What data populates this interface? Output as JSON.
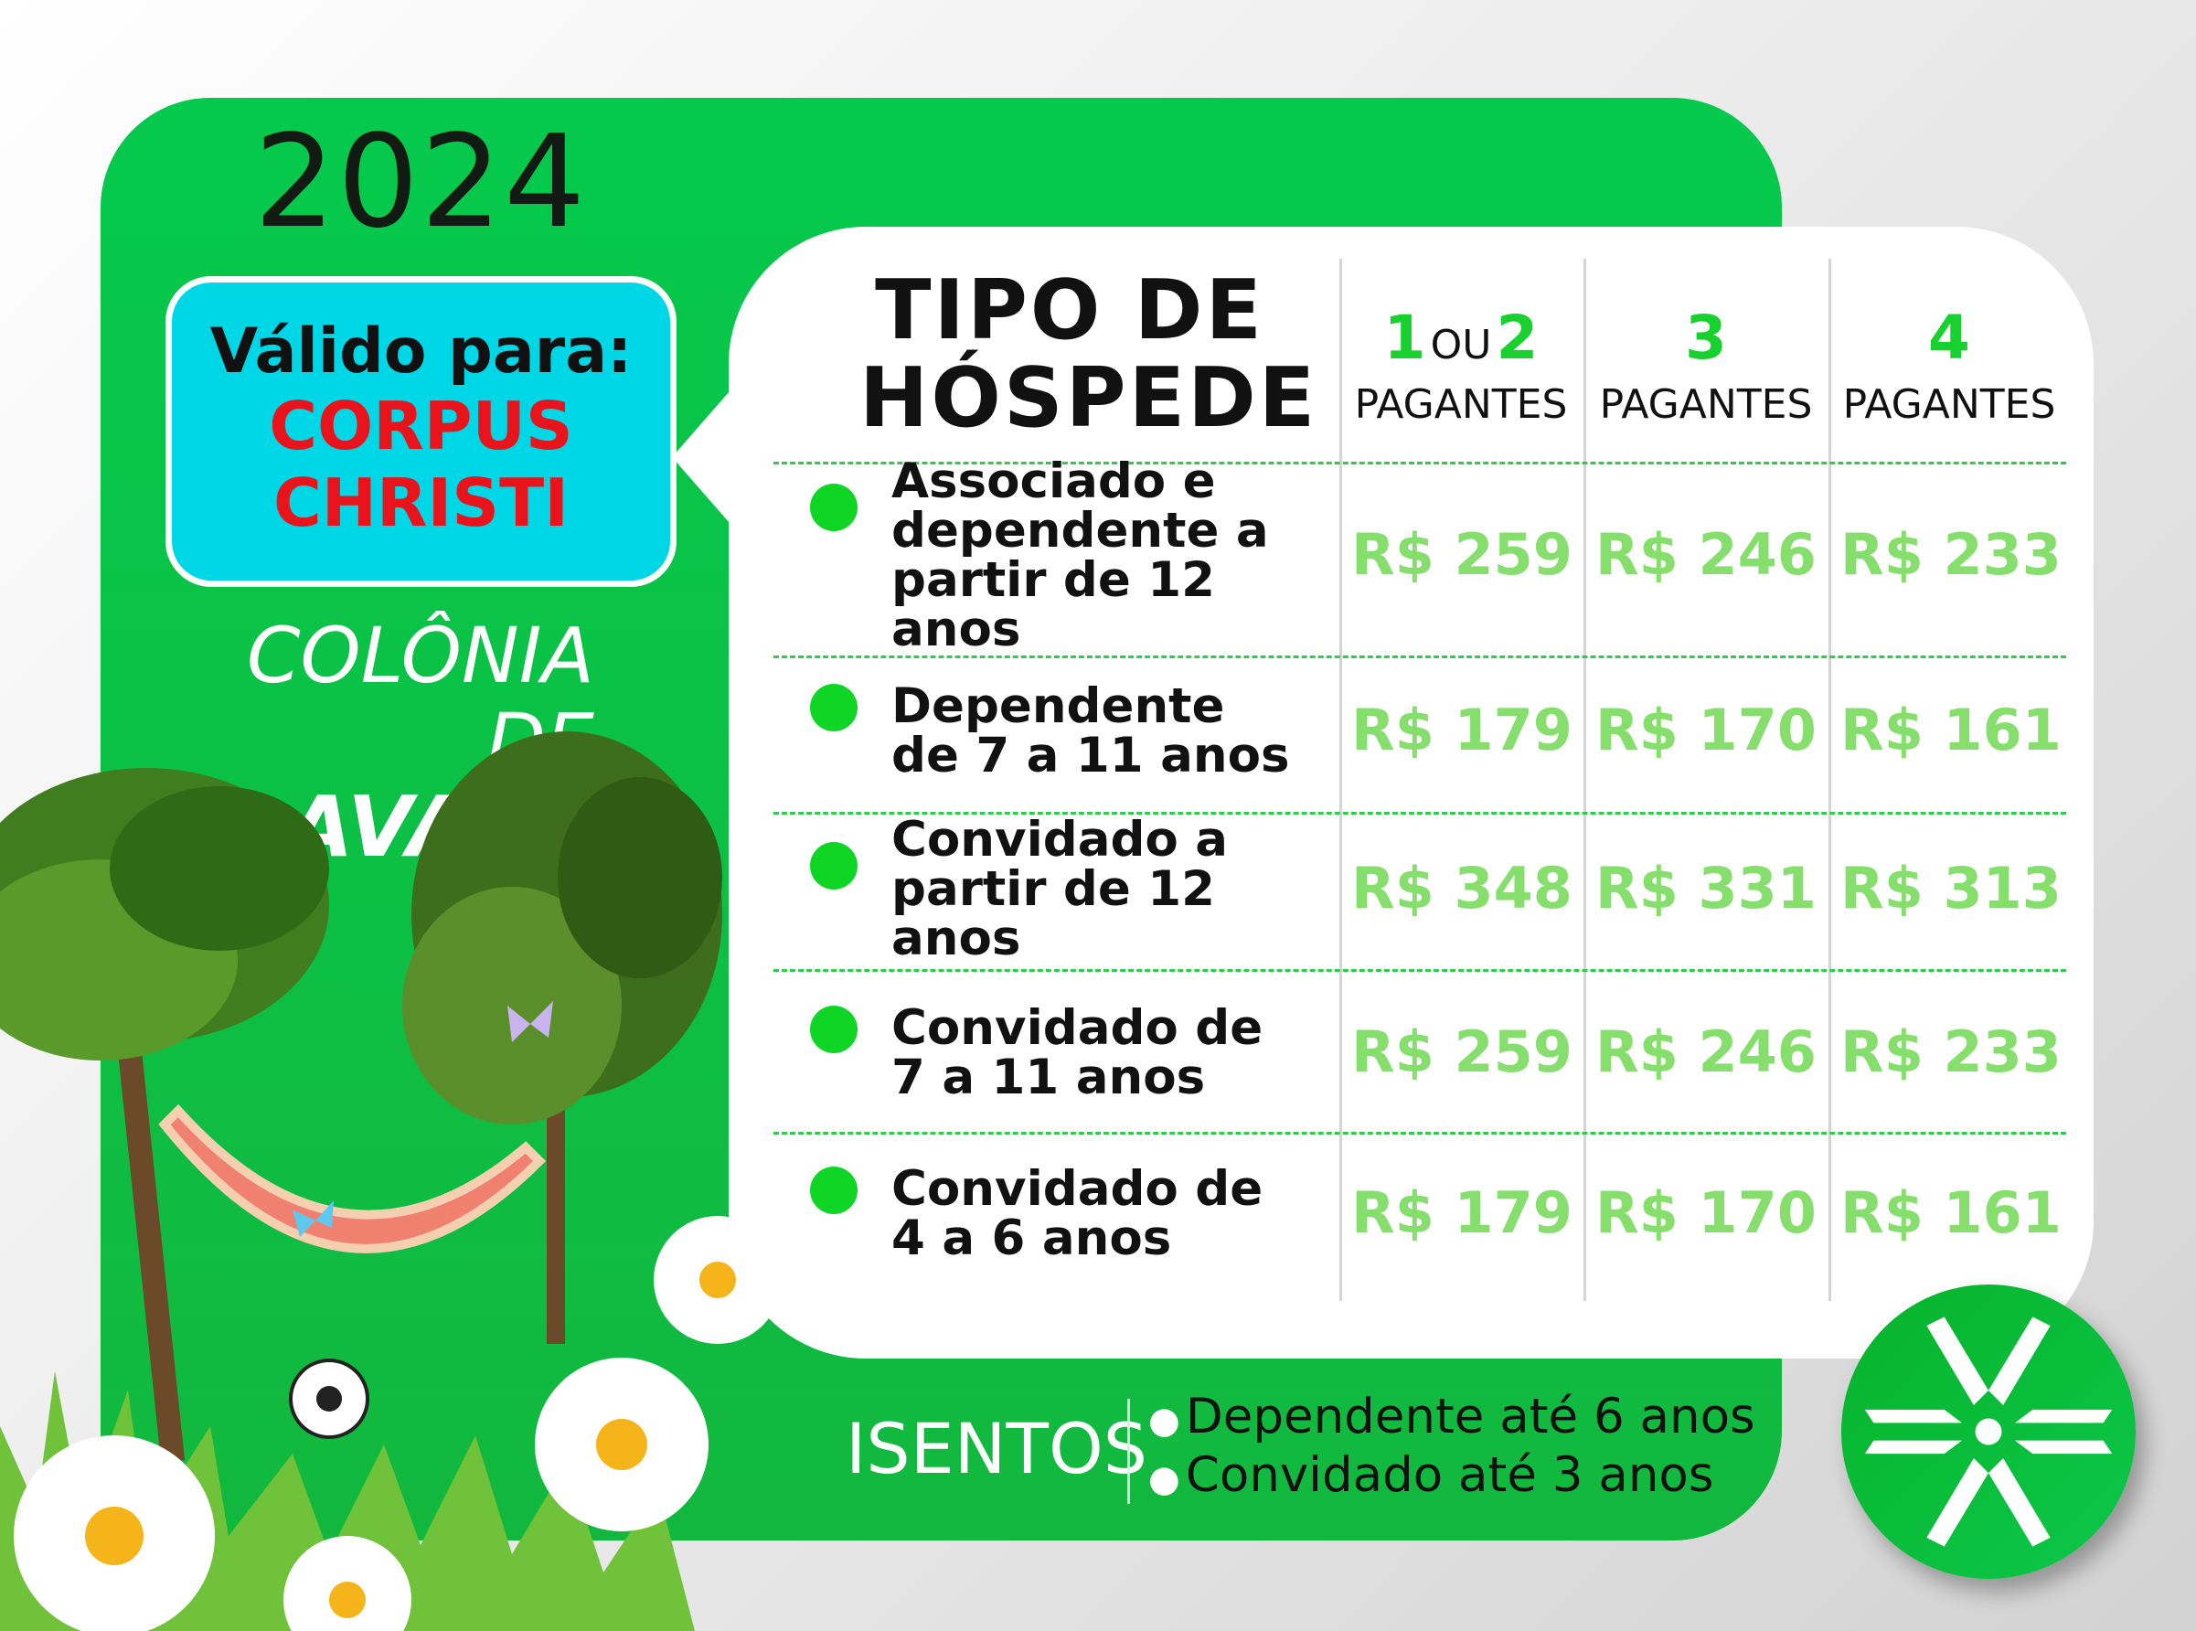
{
  "year": "2024",
  "valid": {
    "label": "Válido para:",
    "event_line1": "CORPUS",
    "event_line2": "CHRISTI"
  },
  "location": {
    "line1": "COLÔNIA DE",
    "line2": "AVARÉ"
  },
  "table": {
    "header": {
      "type_line1": "TIPO DE",
      "type_line2": "HÓSPEDE",
      "columns": [
        {
          "n1": "1",
          "ou": "OU",
          "n2": "2",
          "label": "PAGANTES"
        },
        {
          "n1": "3",
          "label": "PAGANTES"
        },
        {
          "n1": "4",
          "label": "PAGANTES"
        }
      ]
    },
    "rows": [
      {
        "lines": [
          "Associado e",
          "dependente a",
          "partir de 12 anos"
        ],
        "prices": [
          "R$ 259",
          "R$ 246",
          "R$ 233"
        ]
      },
      {
        "lines": [
          "Dependente",
          "de 7 a 11 anos"
        ],
        "prices": [
          "R$ 179",
          "R$ 170",
          "R$ 161"
        ]
      },
      {
        "lines": [
          "Convidado a",
          "partir de 12 anos"
        ],
        "prices": [
          "R$ 348",
          "R$ 331",
          "R$ 313"
        ]
      },
      {
        "lines": [
          "Convidado de",
          "7 a 11 anos"
        ],
        "prices": [
          "R$ 259",
          "R$ 246",
          "R$ 233"
        ]
      },
      {
        "lines": [
          "Convidado de",
          "4 a 6 anos"
        ],
        "prices": [
          "R$ 179",
          "R$ 170",
          "R$ 161"
        ]
      }
    ]
  },
  "exempt": {
    "title": "ISENTOS",
    "items": [
      "Dependente até 6 anos",
      "Convidado até 3 anos"
    ]
  },
  "colors": {
    "green": "#05c94c",
    "cyan": "#00d7e6",
    "red": "#e8131b",
    "price": "#86df6d"
  },
  "icons": {
    "logo": "snowflake-asterisk-logo"
  }
}
